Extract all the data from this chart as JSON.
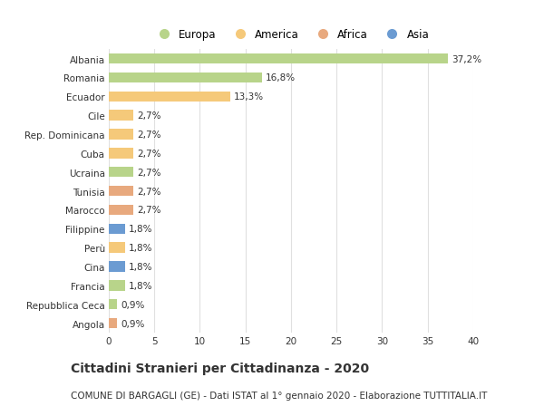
{
  "categories": [
    "Angola",
    "Repubblica Ceca",
    "Francia",
    "Cina",
    "Perù",
    "Filippine",
    "Marocco",
    "Tunisia",
    "Ucraina",
    "Cuba",
    "Rep. Dominicana",
    "Cile",
    "Ecuador",
    "Romania",
    "Albania"
  ],
  "values": [
    0.9,
    0.9,
    1.8,
    1.8,
    1.8,
    1.8,
    2.7,
    2.7,
    2.7,
    2.7,
    2.7,
    2.7,
    13.3,
    16.8,
    37.2
  ],
  "labels": [
    "0,9%",
    "0,9%",
    "1,8%",
    "1,8%",
    "1,8%",
    "1,8%",
    "2,7%",
    "2,7%",
    "2,7%",
    "2,7%",
    "2,7%",
    "2,7%",
    "13,3%",
    "16,8%",
    "37,2%"
  ],
  "colors": [
    "#e8a97e",
    "#b8d48a",
    "#b8d48a",
    "#6b9bd2",
    "#f5c97a",
    "#6b9bd2",
    "#e8a97e",
    "#e8a97e",
    "#b8d48a",
    "#f5c97a",
    "#f5c97a",
    "#f5c97a",
    "#f5c97a",
    "#b8d48a",
    "#b8d48a"
  ],
  "legend_labels": [
    "Europa",
    "America",
    "Africa",
    "Asia"
  ],
  "legend_colors": [
    "#b8d48a",
    "#f5c97a",
    "#e8a97e",
    "#6b9bd2"
  ],
  "title": "Cittadini Stranieri per Cittadinanza - 2020",
  "subtitle": "COMUNE DI BARGAGLI (GE) - Dati ISTAT al 1° gennaio 2020 - Elaborazione TUTTITALIA.IT",
  "xlim": [
    0,
    40
  ],
  "xticks": [
    0,
    5,
    10,
    15,
    20,
    25,
    30,
    35,
    40
  ],
  "background_color": "#ffffff",
  "bar_height": 0.55,
  "grid_color": "#e0e0e0",
  "text_color": "#333333",
  "label_fontsize": 7.5,
  "tick_fontsize": 7.5,
  "title_fontsize": 10,
  "subtitle_fontsize": 7.5
}
